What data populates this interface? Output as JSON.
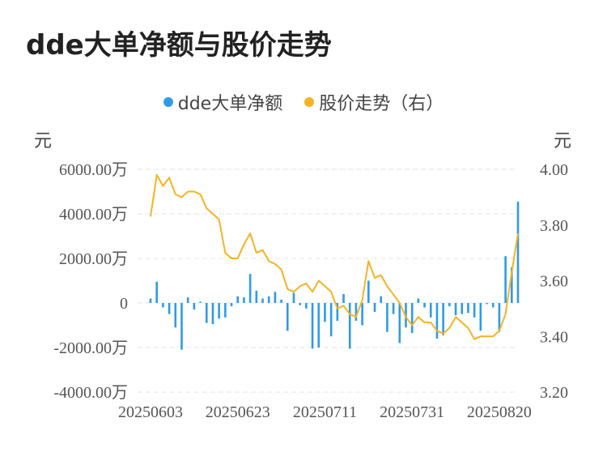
{
  "chart_data": {
    "type": "bar+line",
    "title": "dde大单净额与股价走势",
    "legend": [
      {
        "name": "dde大单净额",
        "color": "#2e9be8"
      },
      {
        "name": "股价走势（右）",
        "color": "#f5b324"
      }
    ],
    "left_unit": "元",
    "right_unit": "元",
    "x_tick_labels": [
      "20250603",
      "20250623",
      "20250711",
      "20250731",
      "20250820"
    ],
    "y_left_ticks": [
      "6000.00万",
      "4000.00万",
      "2000.00万",
      "0",
      "-2000.00万",
      "-4000.00万"
    ],
    "y_right_ticks": [
      "4.00",
      "3.80",
      "3.60",
      "3.40",
      "3.20"
    ],
    "y_left_range": [
      -4000,
      6000
    ],
    "y_right_range": [
      3.2,
      4.0
    ],
    "x_tick_indices": [
      0,
      14,
      28,
      42,
      56
    ],
    "series": [
      {
        "name": "dde大单净额",
        "type": "bar",
        "unit": "万",
        "values": [
          200,
          950,
          -200,
          -500,
          -1100,
          -2100,
          250,
          -300,
          50,
          -900,
          -950,
          -700,
          -650,
          -150,
          300,
          250,
          1300,
          550,
          200,
          300,
          500,
          150,
          -1250,
          450,
          -100,
          -250,
          -2050,
          -2000,
          -850,
          -1500,
          -800,
          400,
          -2050,
          -800,
          -1000,
          1000,
          -400,
          300,
          -1300,
          -500,
          -1800,
          -1100,
          -1350,
          200,
          -200,
          -650,
          -1600,
          -1450,
          -150,
          -550,
          -500,
          -450,
          -650,
          -1250,
          -50,
          -200,
          -1300,
          2100,
          1600,
          4550
        ]
      },
      {
        "name": "股价走势（右）",
        "type": "line",
        "values": [
          3.83,
          3.98,
          3.94,
          3.97,
          3.91,
          3.9,
          3.92,
          3.92,
          3.91,
          3.86,
          3.84,
          3.82,
          3.7,
          3.68,
          3.68,
          3.73,
          3.77,
          3.7,
          3.71,
          3.67,
          3.66,
          3.64,
          3.57,
          3.56,
          3.58,
          3.59,
          3.56,
          3.6,
          3.58,
          3.56,
          3.5,
          3.51,
          3.48,
          3.47,
          3.53,
          3.67,
          3.61,
          3.62,
          3.58,
          3.55,
          3.52,
          3.47,
          3.44,
          3.47,
          3.45,
          3.45,
          3.42,
          3.41,
          3.43,
          3.47,
          3.45,
          3.43,
          3.39,
          3.4,
          3.4,
          3.4,
          3.42,
          3.48,
          3.63,
          3.77
        ]
      }
    ],
    "grid": true
  }
}
